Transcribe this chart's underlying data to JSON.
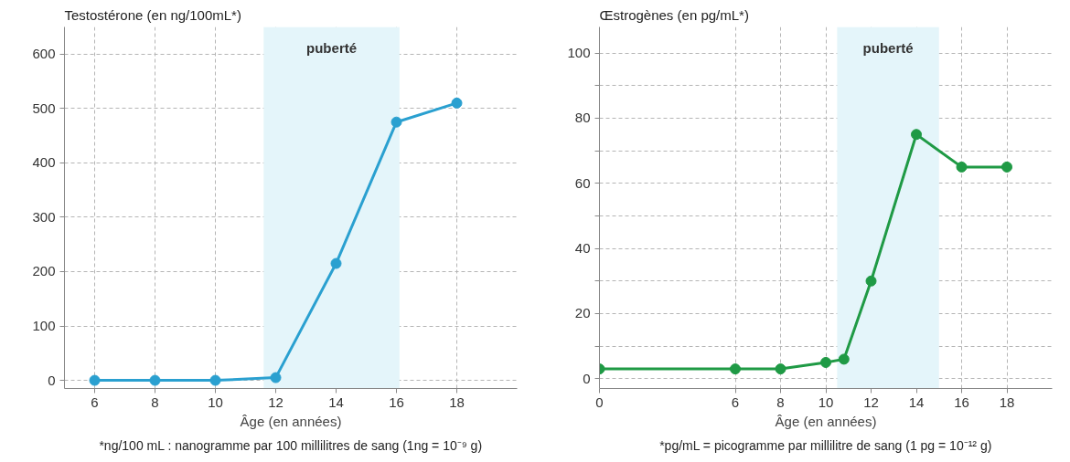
{
  "chart_data": [
    {
      "type": "line",
      "ylabel": "Testostérone (en ng/100mL*)",
      "xlabel": "Âge (en années)",
      "x": [
        6,
        8,
        10,
        12,
        14,
        16,
        18
      ],
      "series": [
        {
          "color": "#2aa0d0",
          "values": [
            0,
            0,
            0,
            5,
            215,
            475,
            510
          ]
        }
      ],
      "xlim": [
        5,
        20
      ],
      "xticks": [
        6,
        8,
        10,
        12,
        14,
        16,
        18
      ],
      "ylim": [
        -15,
        650
      ],
      "yticks": [
        0,
        100,
        200,
        300,
        400,
        500,
        600
      ],
      "bands": [
        {
          "axis": "x",
          "from": 11.6,
          "to": 16.1,
          "label": "puberté",
          "color": "#e4f5fa"
        }
      ],
      "annotations": [
        "*ng/100 mL : nanogramme par 100 millilitres de sang (1ng = 10⁻⁹ g)"
      ],
      "grid": true,
      "marker": "circle",
      "line_style": "solid"
    },
    {
      "type": "line",
      "ylabel": "Œstrogènes (en pg/mL*)",
      "xlabel": "Âge (en années)",
      "x": [
        0,
        6,
        8,
        10,
        10.8,
        12,
        14,
        16,
        18
      ],
      "series": [
        {
          "color": "#1f9a45",
          "values": [
            3,
            3,
            3,
            5,
            6,
            30,
            75,
            65,
            65
          ]
        }
      ],
      "xlim": [
        0,
        20
      ],
      "xticks": [
        0,
        6,
        8,
        10,
        12,
        14,
        16,
        18
      ],
      "ylim": [
        -3,
        108
      ],
      "yticks": [
        0,
        {
          "value": 10,
          "label": null
        },
        20,
        {
          "value": 30,
          "label": null
        },
        40,
        {
          "value": 50,
          "label": null
        },
        60,
        {
          "value": 70,
          "label": null
        },
        80,
        {
          "value": 90,
          "label": null
        },
        100
      ],
      "bands": [
        {
          "axis": "x",
          "from": 10.5,
          "to": 15.0,
          "label": "puberté",
          "color": "#e4f5fa"
        }
      ],
      "annotations": [
        "*pg/mL = picogramme par millilitre de sang (1 pg = 10⁻¹² g)"
      ],
      "grid": true,
      "marker": "circle",
      "line_style": "solid"
    }
  ]
}
